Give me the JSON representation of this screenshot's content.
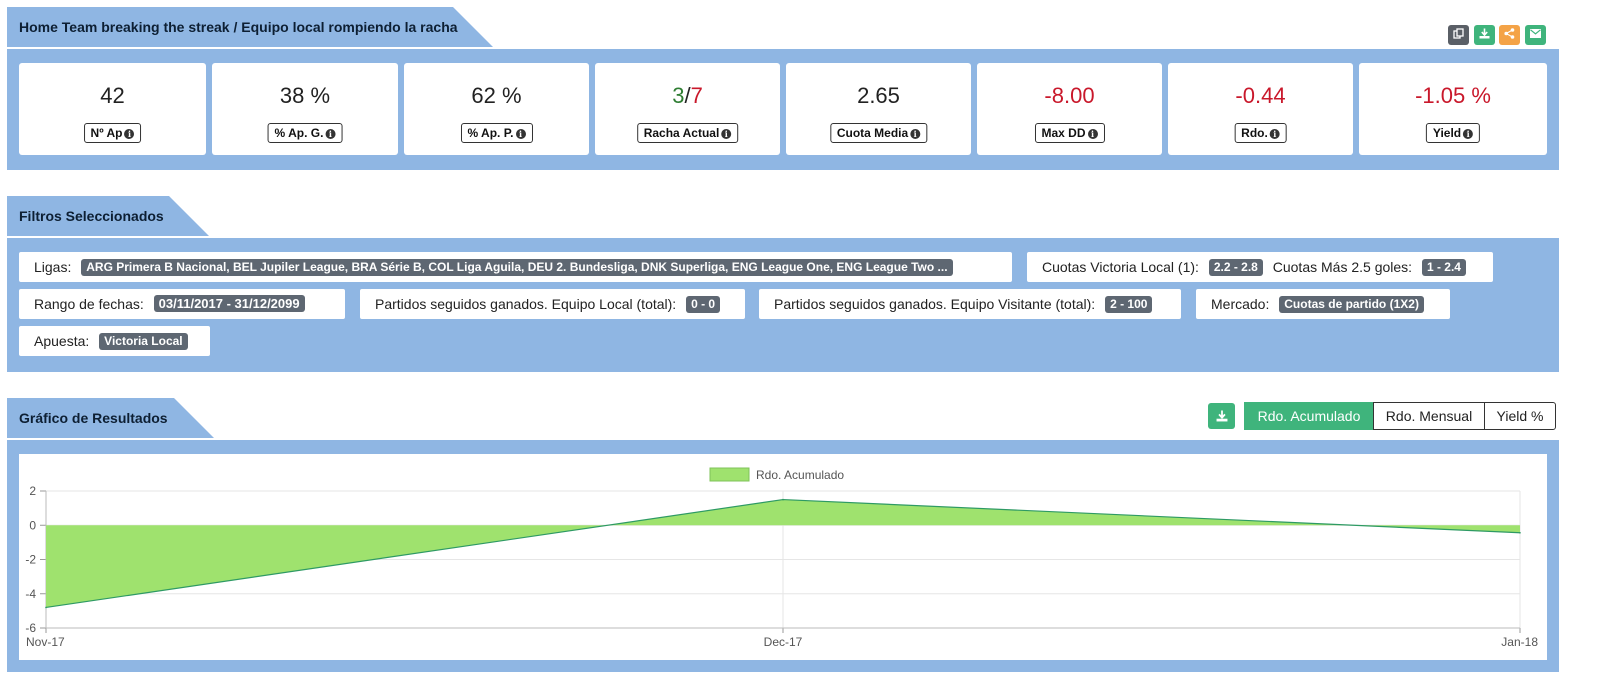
{
  "stats_section": {
    "title": "Home Team breaking the streak / Equipo local rompiendo la racha",
    "cards": [
      {
        "value": "42",
        "label": "Nº Ap",
        "negative": false
      },
      {
        "value": "38 %",
        "label": "% Ap. G.",
        "negative": false
      },
      {
        "value": "62 %",
        "label": "% Ap. P.",
        "negative": false
      },
      {
        "value": "",
        "label": "Racha Actual",
        "negative": false,
        "streak_won": "3",
        "streak_sep": "/",
        "streak_lost": "7"
      },
      {
        "value": "2.65",
        "label": "Cuota Media",
        "negative": false
      },
      {
        "value": "-8.00",
        "label": "Max DD",
        "negative": true
      },
      {
        "value": "-0.44",
        "label": "Rdo.",
        "negative": true
      },
      {
        "value": "-1.05 %",
        "label": "Yield",
        "negative": true
      }
    ],
    "tools": [
      {
        "icon": "copy-icon",
        "color": "#5a5f66"
      },
      {
        "icon": "download-icon",
        "color": "#3fb47c"
      },
      {
        "icon": "share-icon",
        "color": "#f4a347"
      },
      {
        "icon": "envelope-icon",
        "color": "#3fb47c"
      }
    ]
  },
  "filters_section": {
    "title": "Filtros Seleccionados",
    "ligas_label": "Ligas:",
    "ligas_value": "ARG Primera B Nacional, BEL Jupiler League, BRA Série B, COL Liga Aguila, DEU 2. Bundesliga, DNK Superliga, ENG League One, ENG League Two ...",
    "cuotas_local_label": "Cuotas Victoria Local (1):",
    "cuotas_local_value": "2.2 - 2.8",
    "cuotas_goles_label": "Cuotas Más 2.5 goles:",
    "cuotas_goles_value": "1 - 2.4",
    "fechas_label": "Rango de fechas:",
    "fechas_value": "03/11/2017 - 31/12/2099",
    "local_label": "Partidos seguidos ganados. Equipo Local (total):",
    "local_value": "0 - 0",
    "visitante_label": "Partidos seguidos ganados. Equipo Visitante (total):",
    "visitante_value": "2 - 100",
    "mercado_label": "Mercado:",
    "mercado_value": "Cuotas de partido (1X2)",
    "apuesta_label": "Apuesta:",
    "apuesta_value": "Victoria Local"
  },
  "chart_section": {
    "title": "Gráfico de Resultados",
    "buttons": {
      "acumulado": "Rdo. Acumulado",
      "mensual": "Rdo. Mensual",
      "yield": "Yield %"
    },
    "active_button": "acumulado"
  },
  "chart_data": {
    "type": "area",
    "x": [
      "Nov-17",
      "Dec-17",
      "Jan-18"
    ],
    "series": [
      {
        "name": "Rdo. Acumulado",
        "values": [
          -4.8,
          1.5,
          -0.44
        ],
        "color": "#9fe26e",
        "line_color": "#2e9a64"
      }
    ],
    "yticks": [
      "2",
      "0",
      "-2",
      "-4",
      "-6"
    ],
    "ylim": [
      -6,
      2
    ],
    "grid": true,
    "legend": "top-center"
  },
  "colors": {
    "panel": "#8fb6e3",
    "negative": "#c9182b",
    "accent": "#3fb47c"
  }
}
